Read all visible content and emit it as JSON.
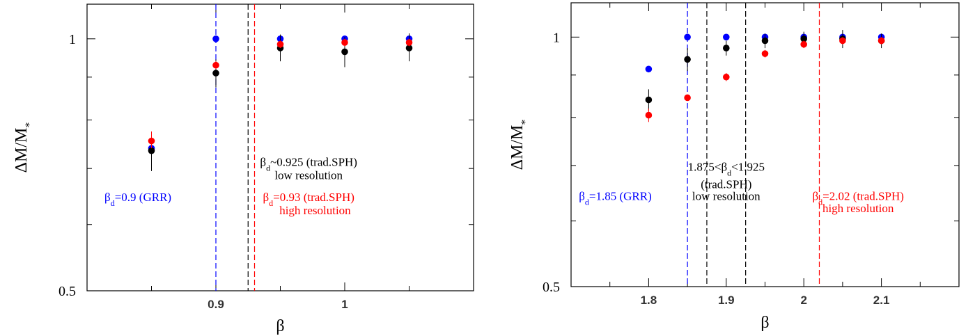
{
  "chart_data": [
    {
      "type": "scatter",
      "xlabel": "β",
      "ylabel": "ΔM/M*",
      "ylog": true,
      "xlim": [
        0.8,
        1.1
      ],
      "ylim": [
        0.5,
        1.1
      ],
      "xticks": [
        {
          "v": 0.9,
          "label": "0.9"
        },
        {
          "v": 1.0,
          "label": "1"
        }
      ],
      "yticks": [
        {
          "v": 0.5,
          "label": "0.5"
        },
        {
          "v": 1.0,
          "label": "1"
        }
      ],
      "series": [
        {
          "color": "#0000ff",
          "points": [
            {
              "x": 0.85,
              "y": 0.74,
              "lo": 0.74,
              "hi": 0.74
            },
            {
              "x": 0.9,
              "y": 1.0,
              "lo": 1.0,
              "hi": 1.0
            },
            {
              "x": 0.95,
              "y": 1.0,
              "lo": 1.0,
              "hi": 1.0
            },
            {
              "x": 1.0,
              "y": 1.0,
              "lo": 1.0,
              "hi": 1.0
            },
            {
              "x": 1.05,
              "y": 1.0,
              "lo": 1.0,
              "hi": 1.0
            }
          ]
        },
        {
          "color": "#000000",
          "points": [
            {
              "x": 0.85,
              "y": 0.735,
              "lo": 0.695,
              "hi": 0.775
            },
            {
              "x": 0.9,
              "y": 0.91,
              "lo": 0.875,
              "hi": 0.945
            },
            {
              "x": 0.95,
              "y": 0.975,
              "lo": 0.94,
              "hi": 1.012
            },
            {
              "x": 1.0,
              "y": 0.965,
              "lo": 0.925,
              "hi": 1.005
            },
            {
              "x": 1.05,
              "y": 0.975,
              "lo": 0.94,
              "hi": 1.015
            }
          ]
        },
        {
          "color": "#ff0000",
          "points": [
            {
              "x": 0.85,
              "y": 0.755,
              "lo": 0.74,
              "hi": 0.775
            },
            {
              "x": 0.9,
              "y": 0.93,
              "lo": 0.92,
              "hi": 0.94
            },
            {
              "x": 0.95,
              "y": 0.985,
              "lo": 0.975,
              "hi": 0.995
            },
            {
              "x": 1.0,
              "y": 0.99,
              "lo": 0.98,
              "hi": 1.0
            },
            {
              "x": 1.05,
              "y": 0.99,
              "lo": 0.98,
              "hi": 1.0
            }
          ]
        }
      ],
      "vlines": [
        {
          "x": 0.9,
          "color": "#0000ff"
        },
        {
          "x": 0.925,
          "color": "#000000"
        },
        {
          "x": 0.93,
          "color": "#ff0000"
        }
      ],
      "annotations": [
        {
          "x": 0.8395,
          "y": 0.64,
          "color": "#0000ff",
          "anchor": "middle",
          "parts": [
            [
              "β",
              ""
            ],
            [
              "d",
              "sub"
            ],
            [
              "=0.9 (GRR)",
              ""
            ]
          ]
        },
        {
          "x": 0.972,
          "y": 0.705,
          "color": "#000000",
          "anchor": "middle",
          "parts": [
            [
              "β",
              ""
            ],
            [
              "d",
              "sub"
            ],
            [
              "~0.925 (trad.SPH)",
              ""
            ]
          ]
        },
        {
          "x": 0.972,
          "y": 0.68,
          "color": "#000000",
          "anchor": "middle",
          "parts": [
            [
              "low resolution",
              ""
            ]
          ]
        },
        {
          "x": 0.972,
          "y": 0.64,
          "color": "#ff0000",
          "anchor": "middle",
          "parts": [
            [
              "β",
              ""
            ],
            [
              "d",
              "sub"
            ],
            [
              "=0.93 (trad.SPH)",
              ""
            ]
          ]
        },
        {
          "x": 0.977,
          "y": 0.617,
          "color": "#ff0000",
          "anchor": "middle",
          "parts": [
            [
              "high resolution",
              ""
            ]
          ]
        }
      ]
    },
    {
      "type": "scatter",
      "xlabel": "β",
      "ylabel": "ΔM/M*",
      "ylog": true,
      "xlim": [
        1.7,
        2.2
      ],
      "ylim": [
        0.5,
        1.1
      ],
      "xticks": [
        {
          "v": 1.8,
          "label": "1.8"
        },
        {
          "v": 1.9,
          "label": "1.9"
        },
        {
          "v": 2.0,
          "label": "2"
        },
        {
          "v": 2.1,
          "label": "2.1"
        }
      ],
      "yticks": [
        {
          "v": 0.5,
          "label": "0.5"
        },
        {
          "v": 1.0,
          "label": "1"
        }
      ],
      "series": [
        {
          "color": "#0000ff",
          "points": [
            {
              "x": 1.8,
              "y": 0.915,
              "lo": 0.915,
              "hi": 0.915
            },
            {
              "x": 1.85,
              "y": 1.0,
              "lo": 1.0,
              "hi": 1.0
            },
            {
              "x": 1.9,
              "y": 1.0,
              "lo": 1.0,
              "hi": 1.0
            },
            {
              "x": 1.95,
              "y": 1.0,
              "lo": 1.0,
              "hi": 1.0
            },
            {
              "x": 2.0,
              "y": 1.0,
              "lo": 1.0,
              "hi": 1.0
            },
            {
              "x": 2.05,
              "y": 1.0,
              "lo": 1.0,
              "hi": 1.0
            },
            {
              "x": 2.1,
              "y": 1.0,
              "lo": 1.0,
              "hi": 1.0
            }
          ]
        },
        {
          "color": "#000000",
          "points": [
            {
              "x": 1.8,
              "y": 0.84,
              "lo": 0.815,
              "hi": 0.865
            },
            {
              "x": 1.85,
              "y": 0.94,
              "lo": 0.91,
              "hi": 0.97
            },
            {
              "x": 1.9,
              "y": 0.97,
              "lo": 0.95,
              "hi": 0.99
            },
            {
              "x": 1.95,
              "y": 0.99,
              "lo": 0.97,
              "hi": 1.01
            },
            {
              "x": 2.0,
              "y": 0.995,
              "lo": 0.975,
              "hi": 1.015
            },
            {
              "x": 2.05,
              "y": 0.995,
              "lo": 0.97,
              "hi": 1.02
            },
            {
              "x": 2.1,
              "y": 0.99,
              "lo": 0.97,
              "hi": 1.01
            }
          ]
        },
        {
          "color": "#ff0000",
          "points": [
            {
              "x": 1.8,
              "y": 0.805,
              "lo": 0.79,
              "hi": 0.82
            },
            {
              "x": 1.85,
              "y": 0.845,
              "lo": 0.845,
              "hi": 0.845
            },
            {
              "x": 1.9,
              "y": 0.895,
              "lo": 0.885,
              "hi": 0.905
            },
            {
              "x": 1.95,
              "y": 0.955,
              "lo": 0.945,
              "hi": 0.965
            },
            {
              "x": 2.0,
              "y": 0.98,
              "lo": 0.97,
              "hi": 0.99
            },
            {
              "x": 2.05,
              "y": 0.99,
              "lo": 0.98,
              "hi": 1.0
            },
            {
              "x": 2.1,
              "y": 0.99,
              "lo": 0.98,
              "hi": 1.0
            }
          ]
        }
      ],
      "vlines": [
        {
          "x": 1.85,
          "color": "#0000ff"
        },
        {
          "x": 1.875,
          "color": "#000000"
        },
        {
          "x": 1.925,
          "color": "#000000"
        },
        {
          "x": 2.02,
          "color": "#ff0000"
        }
      ],
      "annotations": [
        {
          "x": 1.757,
          "y": 0.636,
          "color": "#0000ff",
          "anchor": "middle",
          "parts": [
            [
              "β",
              ""
            ],
            [
              "d",
              "sub"
            ],
            [
              "=1.85 (GRR)",
              ""
            ]
          ]
        },
        {
          "x": 1.9,
          "y": 0.69,
          "color": "#000000",
          "anchor": "middle",
          "parts": [
            [
              "1.875<β",
              ""
            ],
            [
              "d",
              "sub"
            ],
            [
              "<1.925",
              ""
            ]
          ]
        },
        {
          "x": 1.9,
          "y": 0.657,
          "color": "#000000",
          "anchor": "middle",
          "parts": [
            [
              "(trad.SPH)",
              ""
            ]
          ]
        },
        {
          "x": 1.9,
          "y": 0.636,
          "color": "#000000",
          "anchor": "middle",
          "parts": [
            [
              "low resolution",
              ""
            ]
          ]
        },
        {
          "x": 2.07,
          "y": 0.636,
          "color": "#ff0000",
          "anchor": "middle",
          "parts": [
            [
              "β",
              ""
            ],
            [
              "d",
              "sub"
            ],
            [
              "=2.02 (trad.SPH)",
              ""
            ]
          ]
        },
        {
          "x": 2.07,
          "y": 0.615,
          "color": "#ff0000",
          "anchor": "middle",
          "parts": [
            [
              "high resolution",
              ""
            ]
          ]
        }
      ]
    }
  ]
}
